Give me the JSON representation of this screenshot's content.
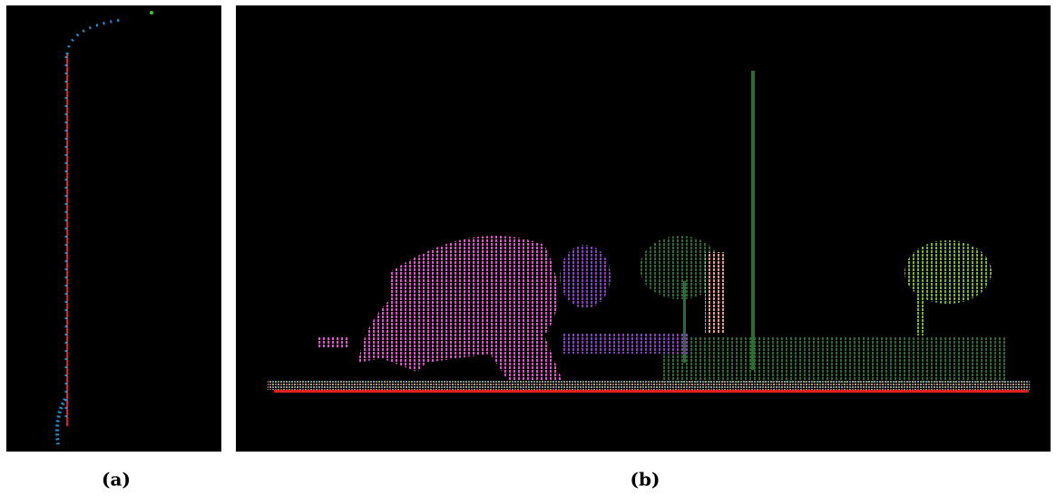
{
  "panels": [
    {
      "caption": "(a)"
    },
    {
      "caption": "(b)"
    }
  ]
}
